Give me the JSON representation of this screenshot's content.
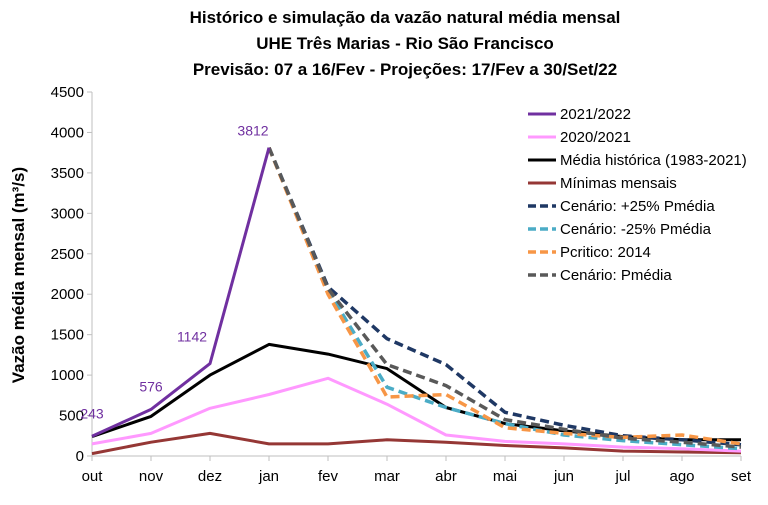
{
  "chart_data": {
    "type": "line",
    "title": [
      "Histórico e simulação da vazão natural média mensal",
      "UHE Três Marias - Rio São Francisco",
      "Previsão: 07 a 16/Fev - Projeções: 17/Fev a 30/Set/22"
    ],
    "ylabel": "Vazão média mensal (m³/s)",
    "xlabel": "",
    "categories": [
      "out",
      "nov",
      "dez",
      "jan",
      "fev",
      "mar",
      "abr",
      "mai",
      "jun",
      "jul",
      "ago",
      "set"
    ],
    "ylim": [
      0,
      4500
    ],
    "yticks": [
      0,
      500,
      1000,
      1500,
      2000,
      2500,
      3000,
      3500,
      4000,
      4500
    ],
    "grid": false,
    "legend_position": "top-right",
    "series": [
      {
        "name": "2021/2022",
        "color": "#7030a0",
        "dash": "solid",
        "values": [
          243,
          576,
          1142,
          3812,
          null,
          null,
          null,
          null,
          null,
          null,
          null,
          null
        ]
      },
      {
        "name": "2020/2021",
        "color": "#ff99ff",
        "dash": "solid",
        "values": [
          150,
          280,
          590,
          760,
          960,
          640,
          260,
          180,
          150,
          110,
          90,
          60
        ]
      },
      {
        "name": "Média histórica (1983-2021)",
        "color": "#000000",
        "dash": "solid",
        "values": [
          240,
          490,
          1000,
          1380,
          1260,
          1080,
          600,
          400,
          310,
          240,
          200,
          200
        ]
      },
      {
        "name": "Mínimas mensais",
        "color": "#953735",
        "dash": "solid",
        "values": [
          30,
          170,
          280,
          150,
          150,
          200,
          170,
          130,
          100,
          60,
          50,
          40
        ]
      },
      {
        "name": "Cenário: +25% Pmédia",
        "color": "#1f3864",
        "dash": "dashed",
        "values": [
          null,
          null,
          null,
          3812,
          2090,
          1450,
          1130,
          540,
          380,
          250,
          200,
          140
        ]
      },
      {
        "name": "Cenário: -25% Pmédia",
        "color": "#4bacc6",
        "dash": "dashed",
        "values": [
          null,
          null,
          null,
          3812,
          2050,
          850,
          600,
          400,
          260,
          190,
          140,
          90
        ]
      },
      {
        "name": "Pcritico: 2014",
        "color": "#f79646",
        "dash": "dashed",
        "values": [
          null,
          null,
          null,
          3812,
          2000,
          730,
          760,
          350,
          280,
          230,
          260,
          150
        ]
      },
      {
        "name": "Cenário: Pmédia",
        "color": "#595959",
        "dash": "dashed",
        "values": [
          null,
          null,
          null,
          3812,
          2070,
          1130,
          870,
          450,
          330,
          220,
          170,
          110
        ]
      }
    ],
    "annotations": [
      {
        "category": "out",
        "value": 243,
        "text": "243",
        "color": "#7030a0"
      },
      {
        "category": "nov",
        "value": 576,
        "text": "576",
        "color": "#7030a0"
      },
      {
        "category": "dez",
        "value": 1142,
        "text": "1142",
        "color": "#7030a0"
      },
      {
        "category": "jan",
        "value": 3812,
        "text": "3812",
        "color": "#7030a0"
      }
    ]
  }
}
